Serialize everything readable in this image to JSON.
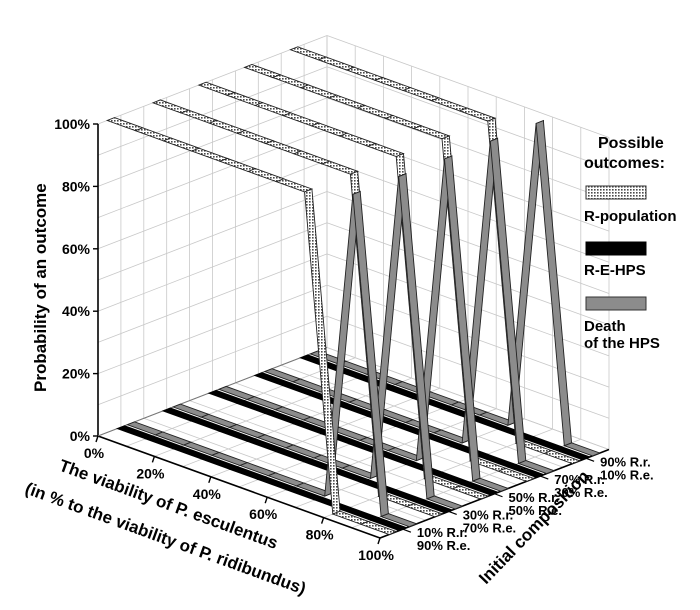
{
  "chart_data": {
    "type": "line",
    "ylabel": "Probability of an outcome",
    "xlabel_line1": "The viability of P. esculentus",
    "xlabel_line2": "(in % to the viability of P. ridibundus)",
    "zlabel": "Initial composition",
    "x_ticks": [
      "0%",
      "20%",
      "40%",
      "60%",
      "80%",
      "100%"
    ],
    "y_ticks": [
      "0%",
      "20%",
      "40%",
      "60%",
      "80%",
      "100%"
    ],
    "x_values": [
      0,
      10,
      20,
      30,
      40,
      50,
      60,
      70,
      80,
      90,
      100
    ],
    "ylim": [
      0,
      100
    ],
    "compositions": [
      {
        "rr": "10% R.r.",
        "re": "90% R.e."
      },
      {
        "rr": "30% R.r.",
        "re": "70% R.e."
      },
      {
        "rr": "50% R.r.",
        "re": "50% R.e."
      },
      {
        "rr": "70% R.r.",
        "re": "30% R.e."
      },
      {
        "rr": "90% R.r.",
        "re": "10% R.e."
      }
    ],
    "legend": {
      "title_line1": "Possible",
      "title_line2": "outcomes:",
      "items": [
        {
          "label_line1": "R-population",
          "label_line2": "",
          "style": "dotted",
          "color": "#9a9a9a"
        },
        {
          "label_line1": "R-E-HPS",
          "label_line2": "",
          "style": "solid",
          "color": "#000000"
        },
        {
          "label_line1": "Death",
          "label_line2": "of the HPS",
          "style": "solid",
          "color": "#8c8c8c"
        }
      ]
    },
    "series": [
      {
        "composition": 0,
        "r_population": [
          100,
          100,
          100,
          100,
          100,
          100,
          100,
          100,
          0,
          0,
          0
        ],
        "r_e_hps": [
          0,
          0,
          0,
          0,
          0,
          0,
          0,
          0,
          0,
          0,
          0
        ],
        "death": [
          0,
          0,
          0,
          0,
          0,
          0,
          0,
          0,
          100,
          0,
          0
        ]
      },
      {
        "composition": 1,
        "r_population": [
          100,
          100,
          100,
          100,
          100,
          100,
          100,
          100,
          0,
          0,
          0
        ],
        "r_e_hps": [
          0,
          0,
          0,
          0,
          0,
          0,
          0,
          0,
          0,
          0,
          0
        ],
        "death": [
          0,
          0,
          0,
          0,
          0,
          0,
          0,
          0,
          100,
          0,
          0
        ]
      },
      {
        "composition": 2,
        "r_population": [
          100,
          100,
          100,
          100,
          100,
          100,
          100,
          100,
          0,
          0,
          0
        ],
        "r_e_hps": [
          0,
          0,
          0,
          0,
          0,
          0,
          0,
          0,
          0,
          0,
          0
        ],
        "death": [
          0,
          0,
          0,
          0,
          0,
          0,
          0,
          0,
          100,
          0,
          0
        ]
      },
      {
        "composition": 3,
        "r_population": [
          100,
          100,
          100,
          100,
          100,
          100,
          100,
          100,
          0,
          0,
          0
        ],
        "r_e_hps": [
          0,
          0,
          0,
          0,
          0,
          0,
          0,
          0,
          0,
          0,
          0
        ],
        "death": [
          0,
          0,
          0,
          0,
          0,
          0,
          0,
          0,
          100,
          0,
          0
        ]
      },
      {
        "composition": 4,
        "r_population": [
          100,
          100,
          100,
          100,
          100,
          100,
          100,
          100,
          0,
          0,
          0
        ],
        "r_e_hps": [
          0,
          0,
          0,
          0,
          0,
          0,
          0,
          0,
          0,
          0,
          0
        ],
        "death": [
          0,
          0,
          0,
          0,
          0,
          0,
          0,
          0,
          100,
          0,
          0
        ]
      }
    ]
  }
}
